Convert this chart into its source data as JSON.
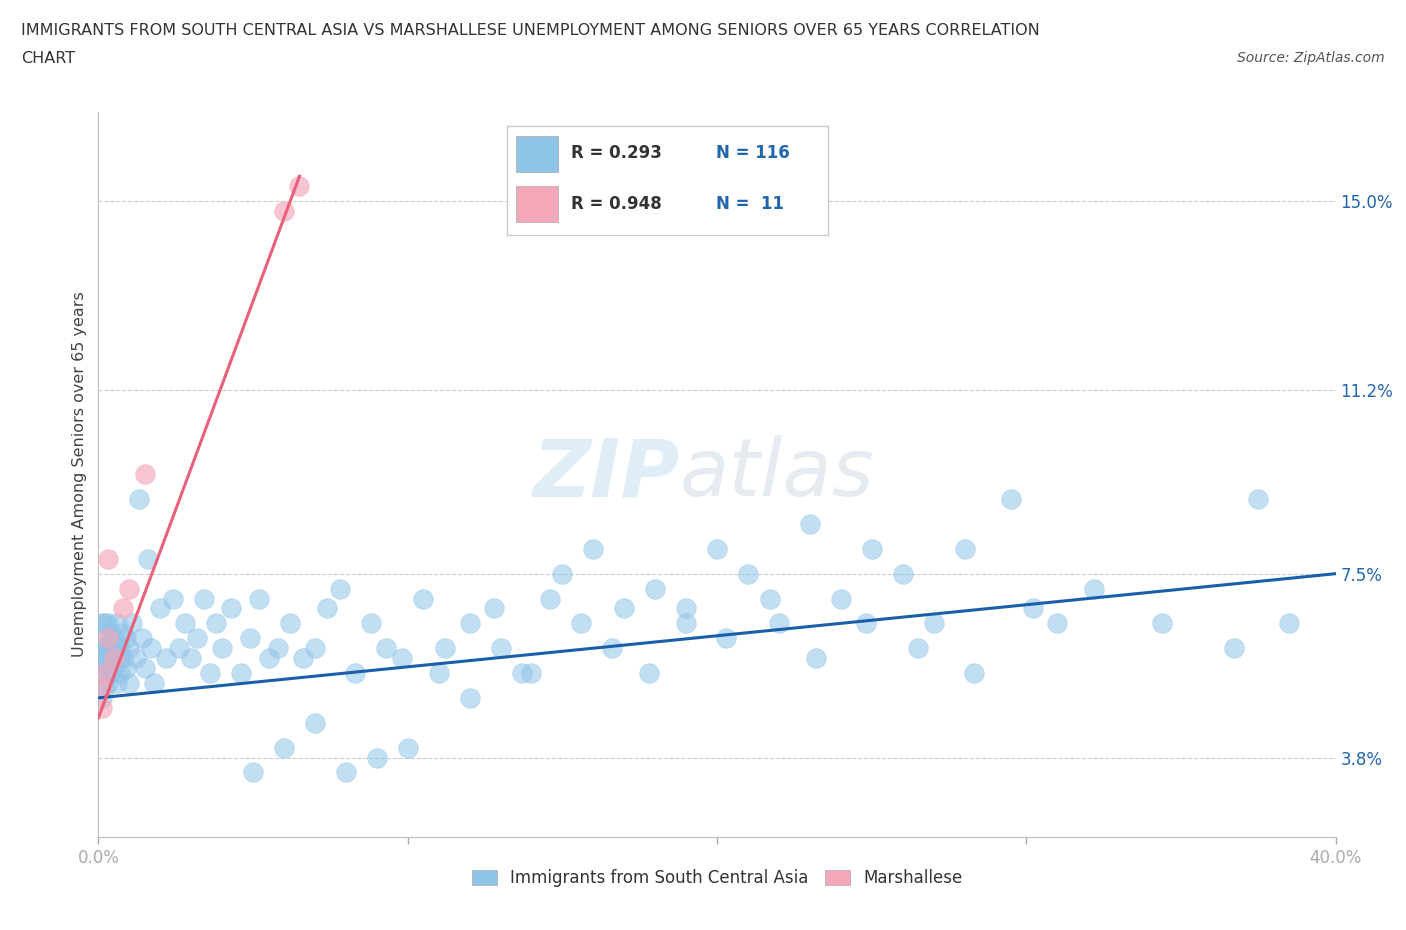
{
  "title_line1": "IMMIGRANTS FROM SOUTH CENTRAL ASIA VS MARSHALLESE UNEMPLOYMENT AMONG SENIORS OVER 65 YEARS CORRELATION",
  "title_line2": "CHART",
  "source": "Source: ZipAtlas.com",
  "ylabel": "Unemployment Among Seniors over 65 years",
  "legend_label1": "Immigrants from South Central Asia",
  "legend_label2": "Marshallese",
  "color_blue": "#8ec4e8",
  "color_pink": "#f4a7b9",
  "color_blue_line": "#1a5fa8",
  "color_pink_line": "#e8607a",
  "watermark_zip": "ZIP",
  "watermark_atlas": "atlas",
  "xlim": [
    0.0,
    0.4
  ],
  "ylim": [
    0.022,
    0.168
  ],
  "y_ticks": [
    0.038,
    0.075,
    0.112,
    0.15
  ],
  "y_tick_labels": [
    "3.8%",
    "7.5%",
    "11.2%",
    "15.0%"
  ],
  "x_ticks": [
    0.0,
    0.1,
    0.2,
    0.3,
    0.4
  ],
  "x_tick_labels": [
    "0.0%",
    "",
    "",
    "",
    "40.0%"
  ],
  "blue_line_x": [
    0.0,
    0.4
  ],
  "blue_line_y": [
    0.05,
    0.075
  ],
  "pink_line_x": [
    0.0,
    0.065
  ],
  "pink_line_y": [
    0.046,
    0.155
  ],
  "blue_scatter_x": [
    0.001,
    0.001,
    0.001,
    0.001,
    0.001,
    0.002,
    0.002,
    0.002,
    0.002,
    0.002,
    0.002,
    0.003,
    0.003,
    0.003,
    0.003,
    0.003,
    0.004,
    0.004,
    0.004,
    0.005,
    0.005,
    0.005,
    0.006,
    0.006,
    0.006,
    0.007,
    0.007,
    0.007,
    0.008,
    0.008,
    0.009,
    0.009,
    0.01,
    0.01,
    0.011,
    0.012,
    0.013,
    0.014,
    0.015,
    0.016,
    0.017,
    0.018,
    0.02,
    0.022,
    0.024,
    0.026,
    0.028,
    0.03,
    0.032,
    0.034,
    0.036,
    0.038,
    0.04,
    0.043,
    0.046,
    0.049,
    0.052,
    0.055,
    0.058,
    0.062,
    0.066,
    0.07,
    0.074,
    0.078,
    0.083,
    0.088,
    0.093,
    0.098,
    0.105,
    0.112,
    0.12,
    0.128,
    0.137,
    0.146,
    0.156,
    0.166,
    0.178,
    0.19,
    0.203,
    0.217,
    0.232,
    0.248,
    0.265,
    0.283,
    0.302,
    0.322,
    0.344,
    0.367,
    0.375,
    0.385,
    0.05,
    0.06,
    0.07,
    0.08,
    0.09,
    0.1,
    0.11,
    0.12,
    0.13,
    0.14,
    0.15,
    0.16,
    0.17,
    0.18,
    0.19,
    0.2,
    0.21,
    0.22,
    0.23,
    0.24,
    0.25,
    0.26,
    0.27,
    0.28,
    0.295,
    0.31
  ],
  "blue_scatter_y": [
    0.055,
    0.06,
    0.065,
    0.05,
    0.058,
    0.052,
    0.06,
    0.055,
    0.065,
    0.058,
    0.062,
    0.056,
    0.06,
    0.053,
    0.065,
    0.058,
    0.06,
    0.055,
    0.063,
    0.058,
    0.062,
    0.056,
    0.06,
    0.053,
    0.065,
    0.058,
    0.06,
    0.055,
    0.063,
    0.058,
    0.062,
    0.056,
    0.06,
    0.053,
    0.065,
    0.058,
    0.09,
    0.062,
    0.056,
    0.078,
    0.06,
    0.053,
    0.068,
    0.058,
    0.07,
    0.06,
    0.065,
    0.058,
    0.062,
    0.07,
    0.055,
    0.065,
    0.06,
    0.068,
    0.055,
    0.062,
    0.07,
    0.058,
    0.06,
    0.065,
    0.058,
    0.06,
    0.068,
    0.072,
    0.055,
    0.065,
    0.06,
    0.058,
    0.07,
    0.06,
    0.065,
    0.068,
    0.055,
    0.07,
    0.065,
    0.06,
    0.055,
    0.068,
    0.062,
    0.07,
    0.058,
    0.065,
    0.06,
    0.055,
    0.068,
    0.072,
    0.065,
    0.06,
    0.09,
    0.065,
    0.035,
    0.04,
    0.045,
    0.035,
    0.038,
    0.04,
    0.055,
    0.05,
    0.06,
    0.055,
    0.075,
    0.08,
    0.068,
    0.072,
    0.065,
    0.08,
    0.075,
    0.065,
    0.085,
    0.07,
    0.08,
    0.075,
    0.065,
    0.08,
    0.09,
    0.065
  ],
  "pink_scatter_x": [
    0.001,
    0.001,
    0.002,
    0.003,
    0.003,
    0.005,
    0.008,
    0.01,
    0.015,
    0.06,
    0.065
  ],
  "pink_scatter_y": [
    0.048,
    0.052,
    0.055,
    0.062,
    0.078,
    0.058,
    0.068,
    0.072,
    0.095,
    0.148,
    0.153
  ]
}
